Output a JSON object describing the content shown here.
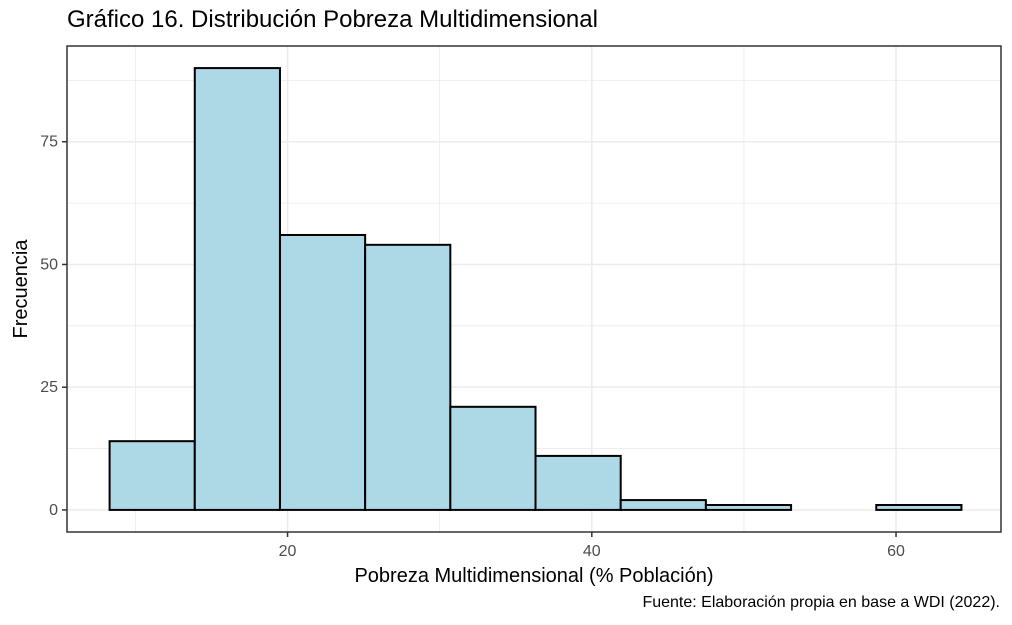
{
  "chart_data": {
    "type": "histogram",
    "title": "Gráfico 16. Distribución Pobreza Multidimensional",
    "xlabel": "Pobreza Multidimensional (% Población)",
    "ylabel": "Frecuencia",
    "caption": "Fuente: Elaboración propia en base a WDI (2022).",
    "xlim": [
      5.5,
      66.9
    ],
    "ylim": [
      -4.5,
      94.5
    ],
    "x_ticks": [
      20,
      40,
      60
    ],
    "y_ticks": [
      0,
      25,
      50,
      75
    ],
    "bins": [
      {
        "x0": 8.3,
        "x1": 13.9,
        "count": 14
      },
      {
        "x0": 13.9,
        "x1": 19.5,
        "count": 90
      },
      {
        "x0": 19.5,
        "x1": 25.1,
        "count": 56
      },
      {
        "x0": 25.1,
        "x1": 30.7,
        "count": 54
      },
      {
        "x0": 30.7,
        "x1": 36.3,
        "count": 21
      },
      {
        "x0": 36.3,
        "x1": 41.9,
        "count": 11
      },
      {
        "x0": 41.9,
        "x1": 47.5,
        "count": 2
      },
      {
        "x0": 47.5,
        "x1": 53.1,
        "count": 1
      },
      {
        "x0": 53.1,
        "x1": 58.7,
        "count": 0
      },
      {
        "x0": 58.7,
        "x1": 64.3,
        "count": 1
      }
    ],
    "bar_fill": "#add8e6",
    "bar_stroke": "#000000",
    "grid": true,
    "grid_color": "#ebebeb",
    "legend": "none"
  }
}
